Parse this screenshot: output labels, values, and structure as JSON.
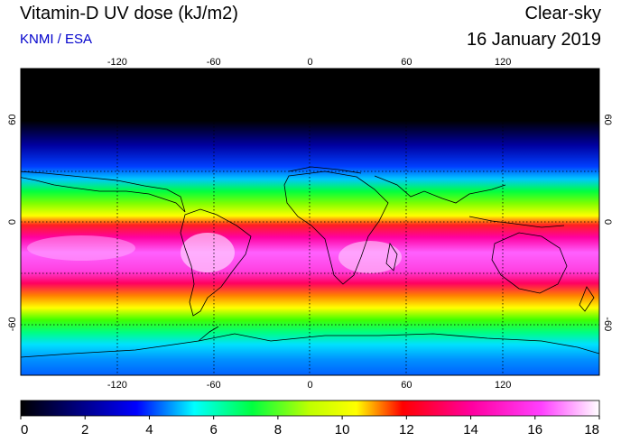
{
  "header": {
    "title": "Vitamin-D UV dose (kJ/m2)",
    "source": "KNMI / ESA",
    "condition": "Clear-sky",
    "date": "16 January 2019"
  },
  "map": {
    "lon_ticks": [
      "-120",
      "-60",
      "0",
      "60",
      "120"
    ],
    "lat_ticks": [
      "60",
      "0",
      "-60"
    ],
    "lon_range": [
      -180,
      180
    ],
    "lat_range": [
      -90,
      90
    ],
    "grid": true
  },
  "colorbar": {
    "min": 0,
    "max": 18,
    "labels": [
      "0",
      "2",
      "4",
      "6",
      "8",
      "10",
      "12",
      "14",
      "16",
      "18"
    ],
    "colors": [
      "#000000",
      "#0000ff",
      "#00ffff",
      "#00ff00",
      "#ffff00",
      "#ff0000",
      "#ff00ff",
      "#ffffff"
    ]
  }
}
